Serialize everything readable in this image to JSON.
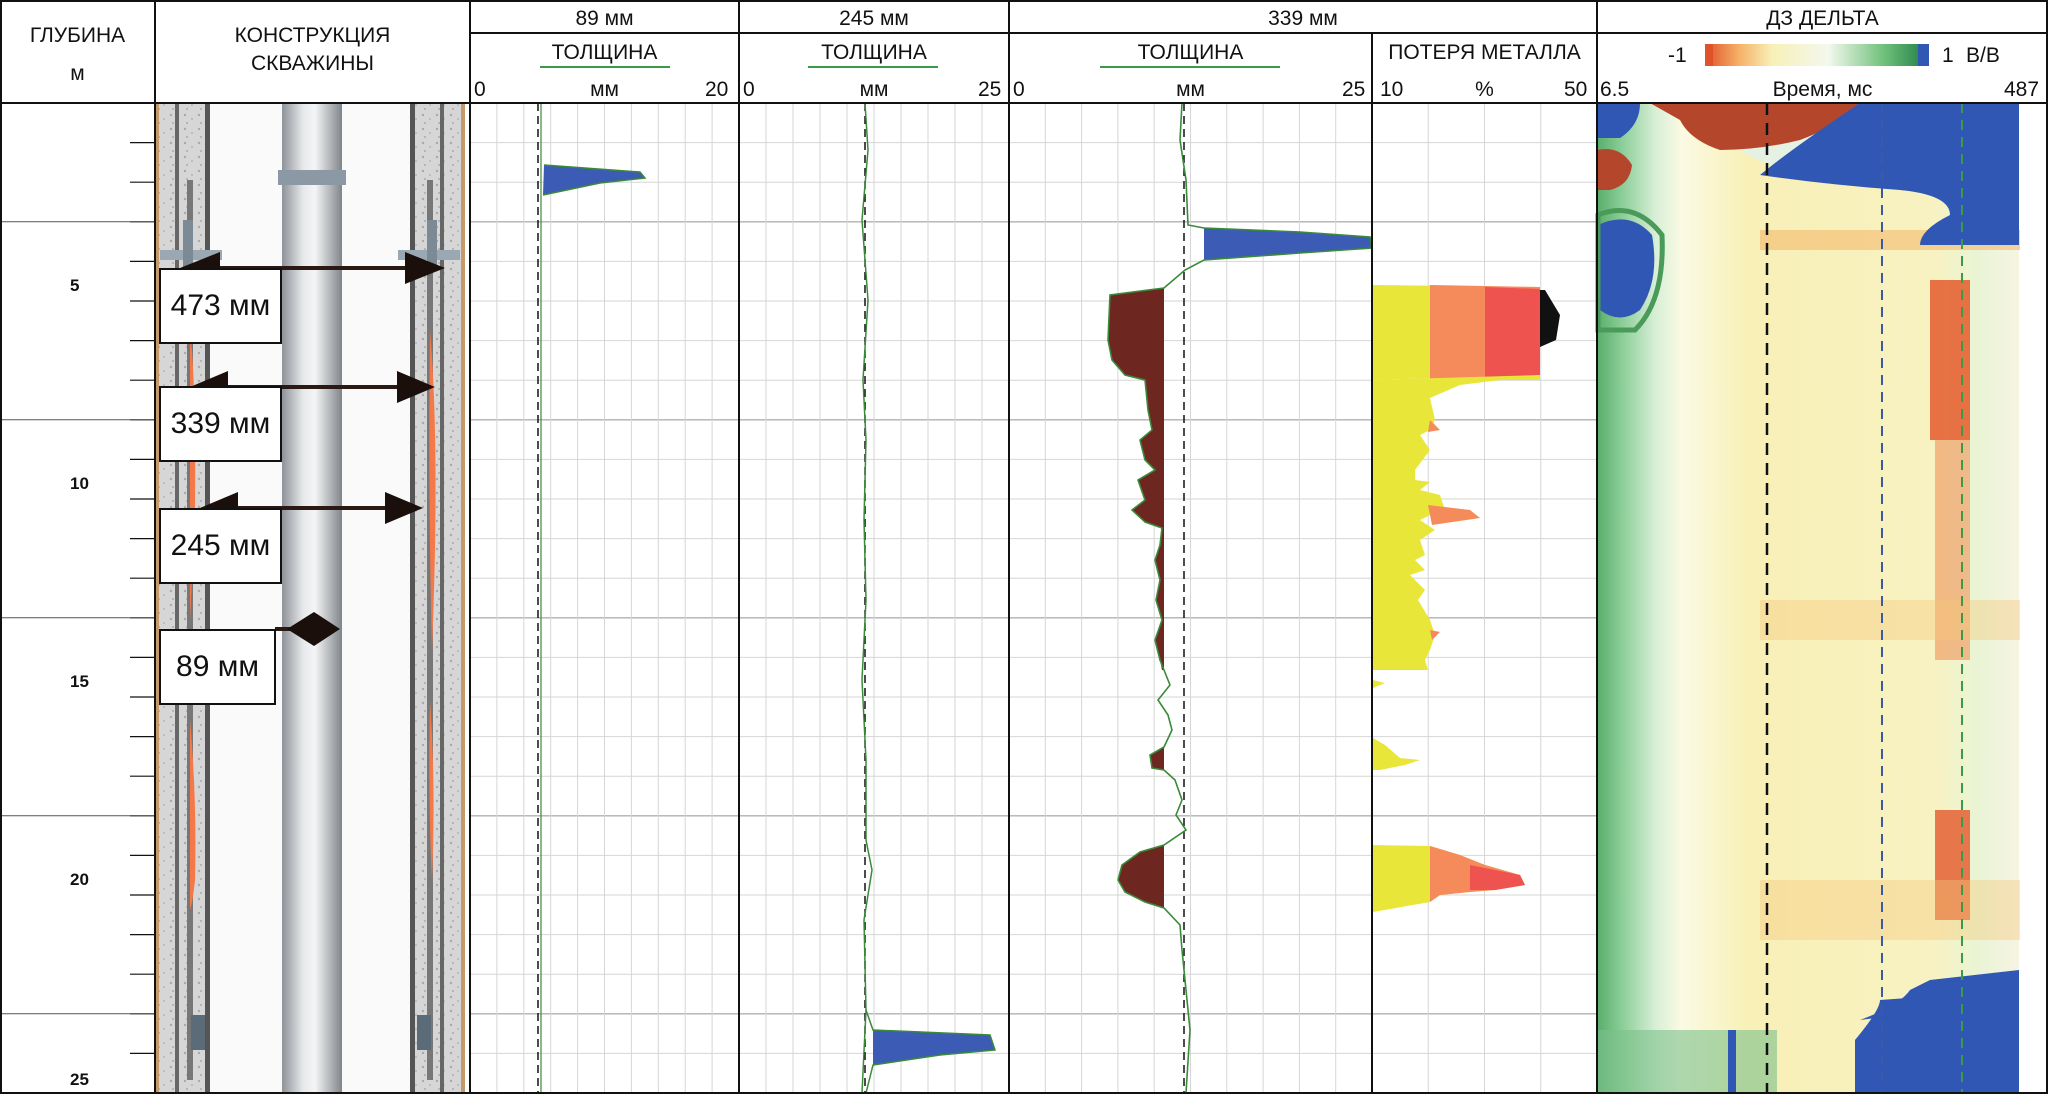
{
  "headers": {
    "depth_title": "ГЛУБИНА",
    "depth_unit": "м",
    "construction_title_line1": "КОНСТРУКЦИЯ",
    "construction_title_line2": "СКВАЖИНЫ",
    "pipe_89": "89 мм",
    "pipe_245": "245 мм",
    "pipe_339": "339 мм",
    "thickness": "ТОЛЩИНА",
    "mm": "мм",
    "metal_loss": "ПОТЕРЯ МЕТАЛЛА",
    "percent": "%",
    "dz_delta": "ДЗ ДЕЛЬТА",
    "time_ms": "Время, мс",
    "colorbar_min": "-1",
    "colorbar_max": "1",
    "colorbar_unit": "В/В"
  },
  "scales": {
    "t89_min": "0",
    "t89_max": "20",
    "t245_min": "0",
    "t245_max": "25",
    "t339_min": "0",
    "t339_max": "25",
    "loss_min": "10",
    "loss_max": "50",
    "time_min": "6.5",
    "time_max": "487"
  },
  "depth_labels": [
    "5",
    "10",
    "15",
    "20",
    "25"
  ],
  "callouts": [
    "473 мм",
    "339 мм",
    "245 мм",
    "89 мм"
  ],
  "colors": {
    "thickness_fill": "#3b5bb5",
    "loss_fill_dark": "#6e2620",
    "loss_yellow": "#e9e63a",
    "loss_orange": "#f58a5a",
    "loss_red": "#ef5350",
    "trace_green": "#3a8a3a",
    "cement": "#d9d9d9",
    "corrosion": "#f4794a"
  },
  "chart_data": {
    "type": "well-log",
    "depth_range": [
      2.5,
      25
    ],
    "t89_thickness_mm": {
      "nominal": 6.5,
      "features": [
        {
          "depth_from": 3.2,
          "depth_to": 4.0,
          "peak": 13
        }
      ]
    },
    "t245_thickness_mm": {
      "nominal": 10,
      "features": [
        {
          "depth_from": 23.4,
          "depth_to": 24.4,
          "peak": 24
        }
      ]
    },
    "t339_thickness_mm": {
      "nominal": 12.5,
      "features": [
        {
          "depth_from": 4.2,
          "depth_to": 5.0,
          "peak": 25
        },
        {
          "depth_from": 5.1,
          "depth_to": 12.9,
          "min": 6.5
        },
        {
          "depth_from": 19.4,
          "depth_to": 20.2,
          "min": 7.5
        }
      ]
    },
    "metal_loss_pct": [
      {
        "depth_from": 5.1,
        "depth_to": 7.6,
        "max": 50
      },
      {
        "depth_from": 10.0,
        "depth_to": 10.6,
        "max": 29
      },
      {
        "depth_from": 16.6,
        "depth_to": 17.3,
        "max": 19
      },
      {
        "depth_from": 19.4,
        "depth_to": 20.4,
        "max": 38
      }
    ]
  }
}
